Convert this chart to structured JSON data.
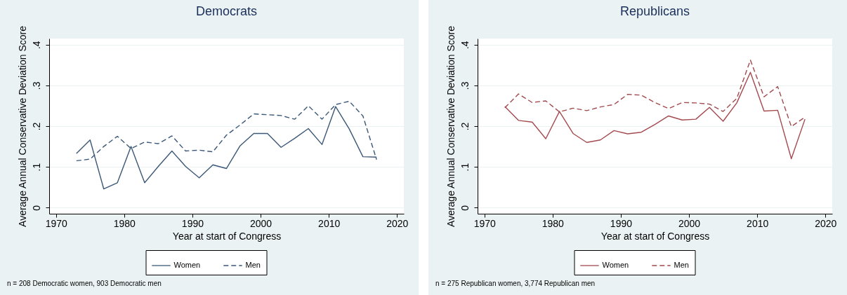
{
  "chart_data": [
    {
      "type": "line",
      "title": "Democrats",
      "xlabel": "Year at start of Congress",
      "ylabel": "Average Annual Conservative Deviation Score",
      "x": [
        1973,
        1975,
        1977,
        1979,
        1981,
        1983,
        1985,
        1987,
        1989,
        1991,
        1993,
        1995,
        1997,
        1999,
        2001,
        2003,
        2005,
        2007,
        2009,
        2011,
        2013,
        2015,
        2017
      ],
      "series": [
        {
          "name": "Women",
          "color": "#3b5878",
          "line_style": "solid",
          "values": [
            0.133,
            0.166,
            0.046,
            0.061,
            0.15,
            0.061,
            0.101,
            0.139,
            0.101,
            0.073,
            0.105,
            0.096,
            0.152,
            0.182,
            0.182,
            0.148,
            0.17,
            0.194,
            0.155,
            0.248,
            0.193,
            0.125,
            0.124
          ]
        },
        {
          "name": "Men",
          "color": "#3b5878",
          "line_style": "dashed",
          "values": [
            0.115,
            0.119,
            0.15,
            0.175,
            0.145,
            0.161,
            0.157,
            0.176,
            0.139,
            0.141,
            0.137,
            0.178,
            0.203,
            0.23,
            0.228,
            0.226,
            0.217,
            0.25,
            0.217,
            0.253,
            0.261,
            0.225,
            0.118
          ]
        }
      ],
      "xlim": [
        1969,
        2021
      ],
      "xticks": [
        1970,
        1980,
        1990,
        2000,
        2010,
        2020
      ],
      "ylim": [
        -0.015,
        0.415
      ],
      "yticks": [
        0,
        {
          "value": 0.1,
          "label": ".1"
        },
        {
          "value": 0.2,
          "label": ".2"
        },
        {
          "value": 0.3,
          "label": ".3"
        },
        {
          "value": 0.4,
          "label": ".4"
        }
      ],
      "grid": "y",
      "legend": "bottom",
      "annotations": [
        "n = 208 Democratic women, 903 Democratic men"
      ]
    },
    {
      "type": "line",
      "title": "Republicans",
      "xlabel": "Year at start of Congress",
      "ylabel": "Average Annual Conservative Deviation Score",
      "x": [
        1973,
        1975,
        1977,
        1979,
        1981,
        1983,
        1985,
        1987,
        1989,
        1991,
        1993,
        1995,
        1997,
        1999,
        2001,
        2003,
        2005,
        2007,
        2009,
        2011,
        2013,
        2015,
        2017
      ],
      "series": [
        {
          "name": "Women",
          "color": "#a34a4f",
          "line_style": "solid",
          "values": [
            0.248,
            0.214,
            0.21,
            0.169,
            0.236,
            0.182,
            0.16,
            0.166,
            0.189,
            0.181,
            0.185,
            0.204,
            0.225,
            0.215,
            0.217,
            0.246,
            0.212,
            0.257,
            0.332,
            0.237,
            0.239,
            0.12,
            0.217
          ]
        },
        {
          "name": "Men",
          "color": "#a34a4f",
          "line_style": "dashed",
          "values": [
            0.245,
            0.279,
            0.258,
            0.262,
            0.235,
            0.244,
            0.238,
            0.247,
            0.253,
            0.278,
            0.276,
            0.258,
            0.243,
            0.258,
            0.257,
            0.254,
            0.236,
            0.268,
            0.362,
            0.272,
            0.297,
            0.199,
            0.222
          ]
        }
      ],
      "xlim": [
        1969,
        2021
      ],
      "xticks": [
        1970,
        1980,
        1990,
        2000,
        2010,
        2020
      ],
      "ylim": [
        -0.015,
        0.415
      ],
      "yticks": [
        0,
        {
          "value": 0.1,
          "label": ".1"
        },
        {
          "value": 0.2,
          "label": ".2"
        },
        {
          "value": 0.3,
          "label": ".3"
        },
        {
          "value": 0.4,
          "label": ".4"
        }
      ],
      "grid": "y",
      "legend": "bottom",
      "annotations": [
        "n = 275 Republican women, 3,774 Republican men"
      ]
    }
  ]
}
